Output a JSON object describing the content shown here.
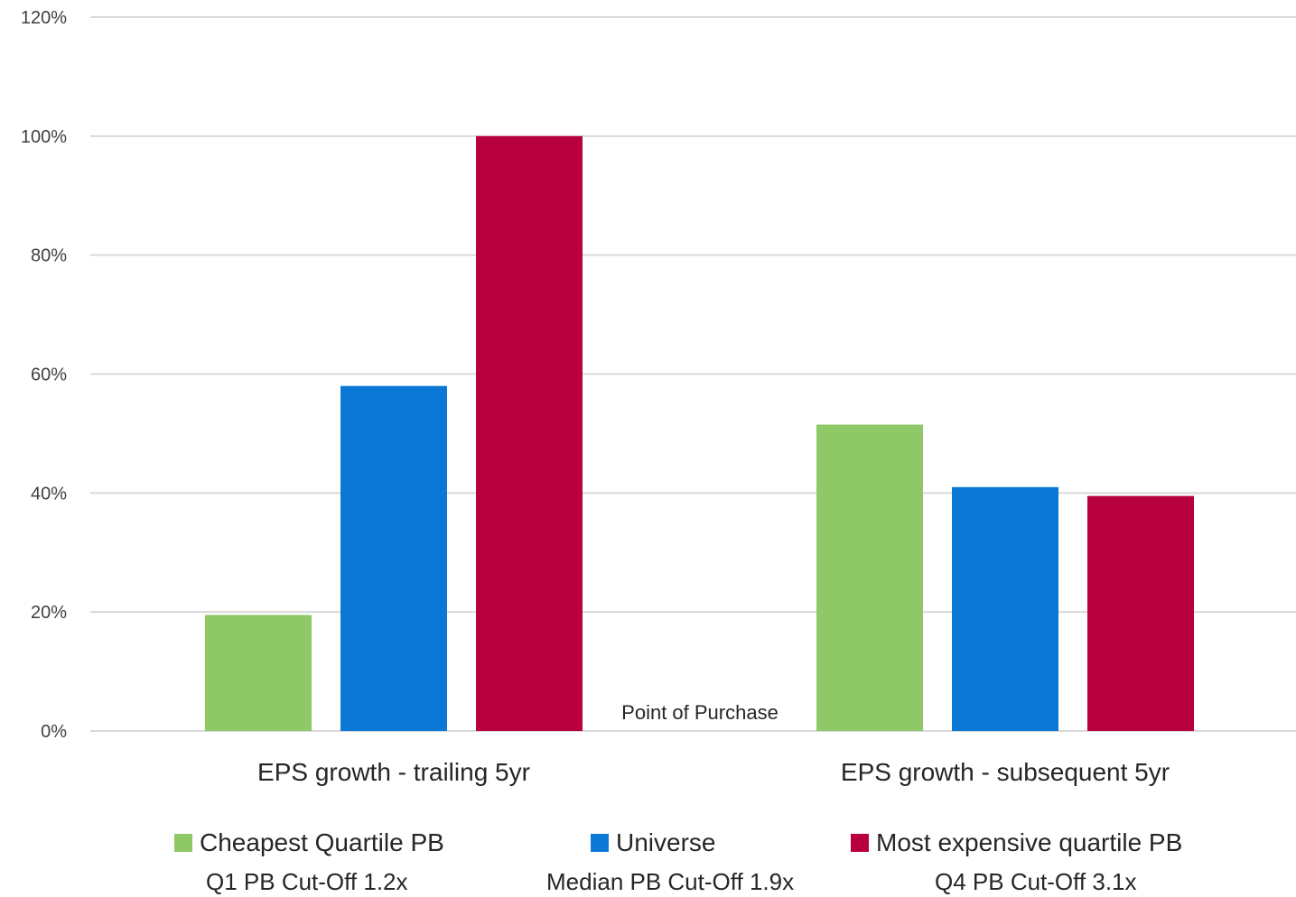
{
  "chart_data": {
    "type": "bar",
    "title": "",
    "xlabel": "",
    "ylabel": "",
    "ylim": [
      0,
      1.2
    ],
    "yticks": [
      "0%",
      "20%",
      "40%",
      "60%",
      "80%",
      "100%",
      "120%"
    ],
    "categories": [
      "EPS growth - trailing 5yr",
      "EPS growth - subsequent 5yr"
    ],
    "series": [
      {
        "name": "Cheapest Quartile PB",
        "color": "#8fc866",
        "values": [
          0.195,
          0.515
        ]
      },
      {
        "name": "Universe",
        "color": "#0b78d6",
        "values": [
          0.58,
          0.41
        ]
      },
      {
        "name": "Most expensive quartile PB",
        "color": "#b8003f",
        "values": [
          1.0,
          0.395
        ]
      }
    ],
    "annotation": "Point of Purchase",
    "grid": true,
    "legend_position": "bottom"
  },
  "legend": {
    "items": [
      {
        "label": "Cheapest Quartile PB",
        "sub": "Q1 PB Cut-Off 1.2x",
        "color": "#8fc866"
      },
      {
        "label": "Universe",
        "sub": "Median PB Cut-Off 1.9x",
        "color": "#0b78d6"
      },
      {
        "label": "Most expensive quartile PB",
        "sub": "Q4 PB Cut-Off 3.1x",
        "color": "#b8003f"
      }
    ]
  }
}
